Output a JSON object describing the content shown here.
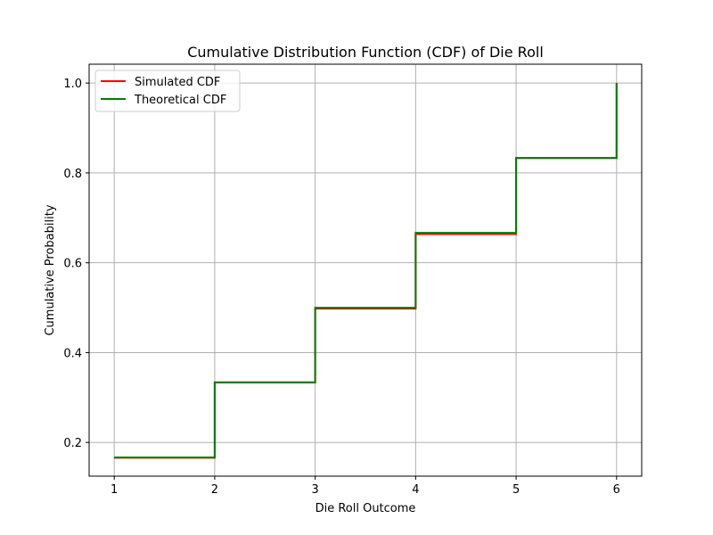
{
  "chart_data": {
    "type": "line",
    "step": true,
    "title": "Cumulative Distribution Function (CDF) of Die Roll",
    "xlabel": "Die Roll Outcome",
    "ylabel": "Cumulative Probability",
    "xlim": [
      0.75,
      6.25
    ],
    "ylim": [
      0.125,
      1.042
    ],
    "xticks": [
      1,
      2,
      3,
      4,
      5,
      6
    ],
    "xtick_labels": [
      "1",
      "2",
      "3",
      "4",
      "5",
      "6"
    ],
    "yticks": [
      0.2,
      0.4,
      0.6,
      0.8,
      1.0
    ],
    "ytick_labels": [
      "0.2",
      "0.4",
      "0.6",
      "0.8",
      "1.0"
    ],
    "grid": true,
    "legend": "top-left",
    "series": [
      {
        "name": "Simulated CDF",
        "color": "#ff0000",
        "x": [
          1,
          2,
          3,
          4,
          5,
          6
        ],
        "y": [
          0.166,
          0.334,
          0.498,
          0.664,
          0.833,
          1.0
        ]
      },
      {
        "name": "Theoretical CDF",
        "color": "#008000",
        "x": [
          1,
          2,
          3,
          4,
          5,
          6
        ],
        "y": [
          0.1667,
          0.3333,
          0.5,
          0.6667,
          0.8333,
          1.0
        ]
      }
    ]
  }
}
